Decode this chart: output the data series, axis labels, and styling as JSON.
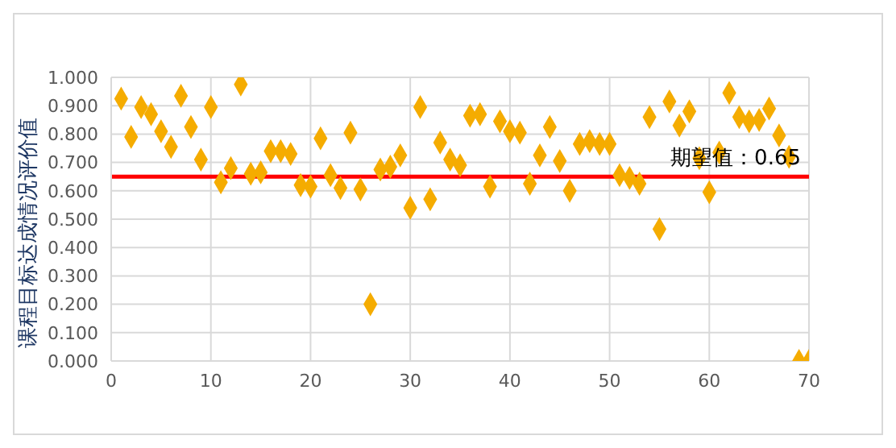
{
  "chart_data": {
    "type": "scatter",
    "ylabel": "课程目标达成情况评价值",
    "x": [
      1,
      2,
      3,
      4,
      5,
      6,
      7,
      8,
      9,
      10,
      11,
      12,
      13,
      14,
      15,
      16,
      17,
      18,
      19,
      20,
      21,
      22,
      23,
      24,
      25,
      26,
      27,
      28,
      29,
      30,
      31,
      32,
      33,
      34,
      35,
      36,
      37,
      38,
      39,
      40,
      41,
      42,
      43,
      44,
      45,
      46,
      47,
      48,
      49,
      50,
      51,
      52,
      53,
      54,
      55,
      56,
      57,
      58,
      59,
      60,
      61,
      62,
      63,
      64,
      65,
      66,
      67,
      68,
      69,
      70
    ],
    "series": [
      {
        "color": "#f5ac00",
        "values": [
          0.925,
          0.79,
          0.895,
          0.87,
          0.81,
          0.755,
          0.935,
          0.825,
          0.71,
          0.895,
          0.63,
          0.68,
          0.975,
          0.66,
          0.665,
          0.74,
          0.74,
          0.73,
          0.62,
          0.615,
          0.785,
          0.655,
          0.61,
          0.805,
          0.605,
          0.2,
          0.675,
          0.685,
          0.725,
          0.54,
          0.895,
          0.57,
          0.77,
          0.71,
          0.69,
          0.865,
          0.87,
          0.615,
          0.845,
          0.81,
          0.805,
          0.625,
          0.725,
          0.825,
          0.705,
          0.6,
          0.765,
          0.775,
          0.765,
          0.765,
          0.655,
          0.645,
          0.625,
          0.86,
          0.465,
          0.915,
          0.83,
          0.88,
          0.715,
          0.595,
          0.735,
          0.945,
          0.86,
          0.845,
          0.85,
          0.89,
          0.795,
          0.72,
          0,
          0
        ]
      }
    ],
    "xlim": [
      0,
      70
    ],
    "xticks": [
      0,
      10,
      20,
      30,
      40,
      50,
      60,
      70
    ],
    "ylim": [
      0,
      1
    ],
    "yticks": [
      {
        "value": 0,
        "label": "0.000"
      },
      {
        "value": 0.1,
        "label": "0.100"
      },
      {
        "value": 0.2,
        "label": "0.200"
      },
      {
        "value": 0.3,
        "label": "0.300"
      },
      {
        "value": 0.4,
        "label": "0.400"
      },
      {
        "value": 0.5,
        "label": "0.500"
      },
      {
        "value": 0.6,
        "label": "0.600"
      },
      {
        "value": 0.7,
        "label": "0.700"
      },
      {
        "value": 0.8,
        "label": "0.800"
      },
      {
        "value": 0.9,
        "label": "0.900"
      },
      {
        "value": 1,
        "label": "1.000"
      }
    ],
    "ref_lines": [
      {
        "axis": "y",
        "value": 0.65,
        "label": "期望值：0.65",
        "color": "#ff0000"
      }
    ],
    "grid": true,
    "marker": "diamond",
    "legend": false
  }
}
